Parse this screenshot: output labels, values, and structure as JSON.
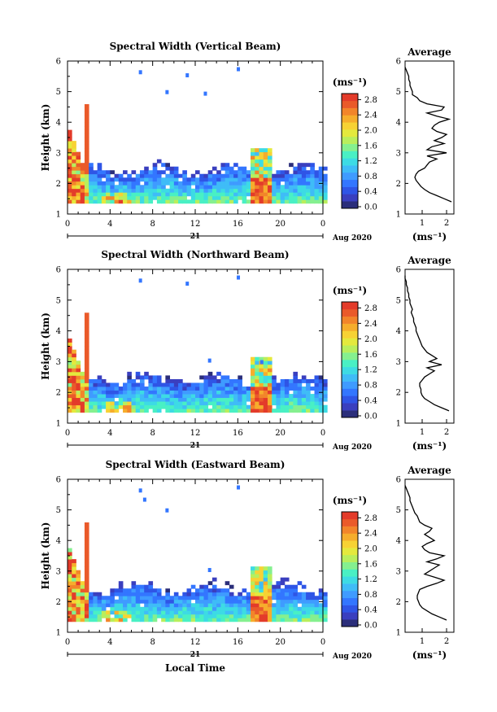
{
  "date_label": "Aug 2020",
  "day_label": "21",
  "x_axis_title": "Local Time",
  "y_axis_title": "Height (km)",
  "unit": "(ms⁻¹)",
  "colorbar_ticks": [
    "2.8",
    "2.4",
    "2.0",
    "1.6",
    "1.2",
    "0.8",
    "0.4",
    "0.0"
  ],
  "colors": {
    "scale": [
      "#2b2e7a",
      "#3a3fbf",
      "#2f55e6",
      "#3376ff",
      "#3f9bff",
      "#3fbcf7",
      "#3ddbe4",
      "#49f0c4",
      "#85f08f",
      "#b9ee5c",
      "#e4e93d",
      "#f7d234",
      "#f6ad2c",
      "#f2852a",
      "#ea5a2a",
      "#e33b2a"
    ],
    "frame": "#000000",
    "profile": "#000000"
  },
  "chart_data": [
    {
      "type": "heatmap",
      "title": "Spectral Width (Vertical Beam)",
      "x_ticks": [
        "0",
        "4",
        "8",
        "12",
        "16",
        "20",
        "0"
      ],
      "xlim": [
        0,
        24
      ],
      "ylim": [
        1,
        6
      ],
      "y_ticks": [
        "1",
        "2",
        "3",
        "4",
        "5",
        "6"
      ],
      "colorbar_range": [
        0,
        3.0
      ],
      "avg_profile": {
        "title": "Average",
        "xlabel": "(ms⁻¹)",
        "x_ticks": [
          "1",
          "2"
        ],
        "xlim": [
          0.3,
          2.3
        ],
        "y": [
          1.4,
          1.5,
          1.6,
          1.7,
          1.8,
          1.9,
          2.0,
          2.1,
          2.2,
          2.3,
          2.4,
          2.5,
          2.6,
          2.7,
          2.8,
          2.9,
          3.0,
          3.1,
          3.2,
          3.3,
          3.4,
          3.5,
          3.6,
          3.7,
          3.8,
          3.9,
          4.0,
          4.1,
          4.2,
          4.3,
          4.4,
          4.5,
          4.6,
          4.7,
          4.8,
          4.9,
          5.0,
          5.1,
          5.2,
          5.3,
          5.4,
          5.5,
          5.6,
          5.7,
          5.8
        ],
        "x": [
          2.2,
          1.9,
          1.6,
          1.3,
          1.1,
          0.95,
          0.85,
          0.75,
          0.7,
          0.75,
          0.85,
          1.1,
          1.2,
          1.3,
          1.6,
          1.2,
          2.0,
          1.2,
          1.4,
          1.9,
          1.5,
          1.8,
          2.0,
          1.6,
          1.4,
          1.5,
          1.7,
          2.1,
          1.6,
          1.2,
          1.8,
          1.9,
          1.2,
          0.9,
          0.8,
          0.6,
          0.6,
          0.55,
          0.5,
          0.5,
          0.45,
          0.45,
          0.4,
          0.35,
          0.3
        ]
      }
    },
    {
      "type": "heatmap",
      "title": "Spectral Width (Northward Beam)",
      "x_ticks": [
        "0",
        "4",
        "8",
        "12",
        "16",
        "20",
        "0"
      ],
      "xlim": [
        0,
        24
      ],
      "ylim": [
        1,
        6
      ],
      "y_ticks": [
        "1",
        "2",
        "3",
        "4",
        "5",
        "6"
      ],
      "colorbar_range": [
        0,
        3.0
      ],
      "avg_profile": {
        "title": "Average",
        "xlabel": "(ms⁻¹)",
        "x_ticks": [
          "1",
          "2"
        ],
        "xlim": [
          0.3,
          2.3
        ],
        "y": [
          1.4,
          1.5,
          1.6,
          1.7,
          1.8,
          1.9,
          2.0,
          2.1,
          2.2,
          2.3,
          2.4,
          2.5,
          2.6,
          2.7,
          2.8,
          2.9,
          3.0,
          3.1,
          3.2,
          3.3,
          3.4,
          3.5,
          3.6,
          3.7,
          3.8,
          3.9,
          4.0,
          4.1,
          4.2,
          4.3,
          4.4,
          4.5,
          4.6,
          4.7,
          4.8,
          4.9,
          5.0,
          5.1,
          5.2,
          5.3,
          5.4,
          5.5,
          5.6,
          5.7,
          5.8
        ],
        "x": [
          2.1,
          1.8,
          1.5,
          1.3,
          1.1,
          1.0,
          0.95,
          0.95,
          0.9,
          0.9,
          1.0,
          1.1,
          1.3,
          1.5,
          1.2,
          1.8,
          1.3,
          1.6,
          1.4,
          1.2,
          1.1,
          1.0,
          0.95,
          0.9,
          0.85,
          0.8,
          0.75,
          0.75,
          0.7,
          0.65,
          0.65,
          0.6,
          0.55,
          0.6,
          0.55,
          0.5,
          0.5,
          0.45,
          0.45,
          0.4,
          0.4,
          0.35,
          0.35,
          0.3,
          0.3
        ]
      }
    },
    {
      "type": "heatmap",
      "title": "Spectral Width (Eastward Beam)",
      "x_ticks": [
        "0",
        "4",
        "8",
        "12",
        "16",
        "20",
        "0"
      ],
      "xlim": [
        0,
        24
      ],
      "ylim": [
        1,
        6
      ],
      "y_ticks": [
        "1",
        "2",
        "3",
        "4",
        "5",
        "6"
      ],
      "colorbar_range": [
        0,
        3.0
      ],
      "avg_profile": {
        "title": "Average",
        "xlabel": "(ms⁻¹)",
        "x_ticks": [
          "1",
          "2"
        ],
        "xlim": [
          0.3,
          2.3
        ],
        "y": [
          1.4,
          1.5,
          1.6,
          1.7,
          1.8,
          1.9,
          2.0,
          2.1,
          2.2,
          2.3,
          2.4,
          2.5,
          2.6,
          2.7,
          2.8,
          2.9,
          3.0,
          3.1,
          3.2,
          3.3,
          3.4,
          3.5,
          3.6,
          3.7,
          3.8,
          3.9,
          4.0,
          4.1,
          4.2,
          4.3,
          4.4,
          4.5,
          4.6,
          4.7,
          4.8,
          4.9,
          5.0,
          5.1,
          5.2,
          5.3,
          5.4,
          5.5,
          5.6,
          5.7,
          5.8
        ],
        "x": [
          2.0,
          1.7,
          1.4,
          1.2,
          1.0,
          0.9,
          0.85,
          0.8,
          0.8,
          0.85,
          0.9,
          1.2,
          1.6,
          1.9,
          1.5,
          1.1,
          1.3,
          1.5,
          1.7,
          1.2,
          1.6,
          1.9,
          1.3,
          1.1,
          1.0,
          1.2,
          1.5,
          1.3,
          1.1,
          1.3,
          1.4,
          1.1,
          0.9,
          0.85,
          0.8,
          0.7,
          0.65,
          0.6,
          0.55,
          0.5,
          0.5,
          0.45,
          0.4,
          0.35,
          0.3
        ]
      }
    }
  ]
}
